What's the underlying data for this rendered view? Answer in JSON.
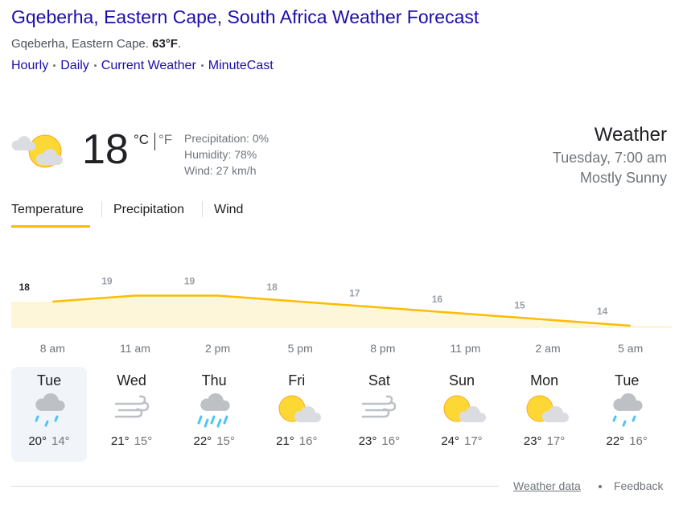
{
  "header": {
    "title": "Gqeberha, Eastern Cape, South Africa Weather Forecast",
    "location": "Gqeberha, Eastern Cape.",
    "location_temp": "63°F",
    "location_end": ".",
    "links": [
      "Hourly",
      "Daily",
      "Current Weather",
      "MinuteCast"
    ]
  },
  "current": {
    "temp": "18",
    "unit_c": "°C",
    "unit_f": "°F",
    "precipitation": "Precipitation: 0%",
    "humidity": "Humidity: 78%",
    "wind": "Wind: 27 km/h",
    "heading": "Weather",
    "time": "Tuesday, 7:00 am",
    "condition": "Mostly Sunny"
  },
  "tabs": [
    "Temperature",
    "Precipitation",
    "Wind"
  ],
  "hourly": {
    "times": [
      "8 am",
      "11 am",
      "2 pm",
      "5 pm",
      "8 pm",
      "11 pm",
      "2 am",
      "5 am"
    ],
    "values": [
      18,
      19,
      19,
      18,
      17,
      16,
      15,
      14
    ]
  },
  "days": [
    {
      "day": "Tue",
      "high": "20°",
      "low": "14°"
    },
    {
      "day": "Wed",
      "high": "21°",
      "low": "15°"
    },
    {
      "day": "Thu",
      "high": "22°",
      "low": "15°"
    },
    {
      "day": "Fri",
      "high": "21°",
      "low": "16°"
    },
    {
      "day": "Sat",
      "high": "23°",
      "low": "16°"
    },
    {
      "day": "Sun",
      "high": "24°",
      "low": "17°"
    },
    {
      "day": "Mon",
      "high": "23°",
      "low": "17°"
    },
    {
      "day": "Tue",
      "high": "22°",
      "low": "16°"
    }
  ],
  "footer": {
    "source": "Weather data",
    "feedback": "Feedback"
  }
}
